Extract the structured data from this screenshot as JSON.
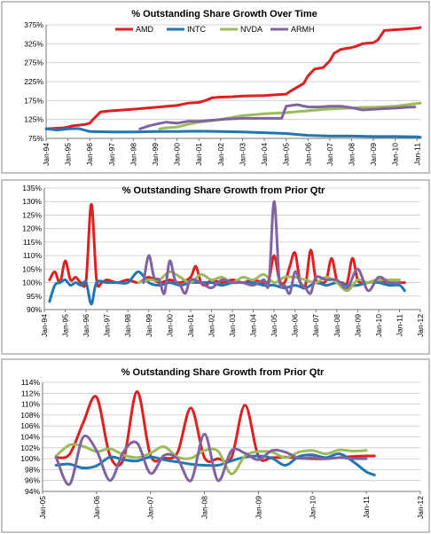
{
  "colors": {
    "AMD": "#e02020",
    "INTC": "#1f77b4",
    "NVDA": "#9cbb59",
    "ARMH": "#8064a2"
  },
  "chart_data": [
    {
      "type": "line",
      "title": "% Outstanding Share Growth Over Time",
      "legend": "top",
      "grid": true,
      "ylim": [
        75,
        375
      ],
      "yticks": [
        75,
        125,
        175,
        225,
        275,
        325,
        375
      ],
      "yticklabels": [
        "75%",
        "125%",
        "175%",
        "225%",
        "275%",
        "325%",
        "375%"
      ],
      "xlim": [
        1994,
        2011.15
      ],
      "xticks": [
        1994,
        1995,
        1996,
        1997,
        1998,
        1999,
        2000,
        2001,
        2002,
        2003,
        2004,
        2005,
        2006,
        2007,
        2008,
        2009,
        2010,
        2011
      ],
      "xticklabels": [
        "Jan-94",
        "Jan-95",
        "Jan-96",
        "Jan-97",
        "Jan-98",
        "Jan-99",
        "Jan-00",
        "Jan-01",
        "Jan-02",
        "Jan-03",
        "Jan-04",
        "Jan-05",
        "Jan-06",
        "Jan-07",
        "Jan-08",
        "Jan-09",
        "Jan-10",
        "Jan-11"
      ],
      "series": [
        {
          "name": "AMD",
          "x": [
            1994,
            1994.5,
            1994.8,
            1995,
            1995.2,
            1995.8,
            1996,
            1996.2,
            1996.5,
            1997,
            1998,
            1999,
            2000,
            2000.5,
            2001,
            2001.3,
            2001.6,
            2002,
            2002.5,
            2003,
            2004,
            2004.5,
            2005,
            2005.2,
            2005.5,
            2005.8,
            2006,
            2006.3,
            2006.7,
            2007,
            2007.2,
            2007.5,
            2008,
            2008.2,
            2008.5,
            2009,
            2009.2,
            2009.5,
            2010,
            2010.5,
            2011,
            2011.15
          ],
          "values": [
            100,
            102,
            103,
            105,
            108,
            112,
            115,
            128,
            145,
            148,
            152,
            157,
            162,
            168,
            170,
            175,
            182,
            184,
            185,
            187,
            188,
            190,
            192,
            200,
            210,
            220,
            240,
            258,
            262,
            280,
            300,
            310,
            315,
            318,
            325,
            328,
            335,
            360,
            362,
            364,
            366,
            368
          ]
        },
        {
          "name": "INTC",
          "x": [
            1994,
            1994.5,
            1995,
            1995.5,
            1996,
            1997,
            1998,
            1999,
            2000,
            2001,
            2002,
            2003,
            2004,
            2005,
            2006,
            2007,
            2008,
            2009,
            2010,
            2011,
            2011.15
          ],
          "values": [
            100,
            97,
            100,
            101,
            93,
            92,
            92,
            93,
            93,
            94,
            93,
            92,
            90,
            88,
            83,
            81,
            81,
            80,
            80,
            79,
            78
          ]
        },
        {
          "name": "NVDA",
          "x": [
            1999.2,
            1999.5,
            2000,
            2000.5,
            2001,
            2002,
            2003,
            2004,
            2005,
            2006,
            2007,
            2008,
            2008.5,
            2009,
            2010,
            2011.15
          ],
          "values": [
            100,
            103,
            105,
            112,
            118,
            125,
            135,
            140,
            143,
            148,
            153,
            155,
            157,
            157,
            160,
            168
          ]
        },
        {
          "name": "ARMH",
          "x": [
            1998.3,
            1998.7,
            1999,
            1999.5,
            2000,
            2000.5,
            2001,
            2002,
            2003,
            2004,
            2004.8,
            2005,
            2005.5,
            2006,
            2006.5,
            2007,
            2007.5,
            2008,
            2008.5,
            2009,
            2010,
            2010.5,
            2010.9
          ],
          "values": [
            100,
            108,
            112,
            118,
            115,
            120,
            120,
            125,
            128,
            128,
            128,
            160,
            164,
            158,
            158,
            160,
            160,
            156,
            150,
            152,
            155,
            157,
            158
          ]
        }
      ]
    },
    {
      "type": "line",
      "title": "% Outstanding Share Growth from Prior Qtr",
      "grid": true,
      "ylim": [
        90,
        135
      ],
      "yticks": [
        90,
        95,
        100,
        105,
        110,
        115,
        120,
        125,
        130,
        135
      ],
      "yticklabels": [
        "90%",
        "95%",
        "100%",
        "105%",
        "110%",
        "115%",
        "120%",
        "125%",
        "130%",
        "135%"
      ],
      "xlim": [
        1994,
        2012
      ],
      "xticks": [
        1994,
        1995,
        1996,
        1997,
        1998,
        1999,
        2000,
        2001,
        2002,
        2003,
        2004,
        2005,
        2006,
        2007,
        2008,
        2009,
        2010,
        2011,
        2012
      ],
      "xticklabels": [
        "Jan-94",
        "Jan-95",
        "Jan-96",
        "Jan-97",
        "Jan-98",
        "Jan-99",
        "Jan-00",
        "Jan-01",
        "Jan-02",
        "Jan-03",
        "Jan-04",
        "Jan-05",
        "Jan-06",
        "Jan-07",
        "Jan-08",
        "Jan-09",
        "Jan-10",
        "Jan-11",
        "Jan-12"
      ],
      "series": [
        {
          "name": "AMD",
          "x": [
            1994.25,
            1994.5,
            1994.75,
            1995,
            1995.25,
            1995.5,
            1995.75,
            1996,
            1996.25,
            1996.5,
            1996.75,
            1997,
            1997.5,
            1998,
            1998.5,
            1999,
            1999.5,
            2000,
            2000.5,
            2001,
            2001.25,
            2001.5,
            2001.75,
            2002,
            2002.5,
            2003,
            2003.5,
            2004,
            2004.5,
            2004.75,
            2005,
            2005.25,
            2005.5,
            2005.75,
            2006,
            2006.25,
            2006.5,
            2006.75,
            2007,
            2007.25,
            2007.5,
            2007.75,
            2008,
            2008.25,
            2008.5,
            2008.75,
            2009,
            2009.25,
            2009.5,
            2010,
            2010.5,
            2011,
            2011.25
          ],
          "values": [
            101,
            104,
            100,
            108,
            101,
            102,
            100,
            101,
            129,
            101,
            100,
            101,
            100,
            101,
            100,
            102,
            100,
            101,
            100,
            102,
            106,
            100,
            99,
            101,
            100,
            101,
            100,
            101,
            100,
            101,
            110,
            101,
            100,
            106,
            111,
            100,
            99,
            112,
            101,
            100,
            101,
            109,
            101,
            100,
            100,
            109,
            101,
            100,
            100,
            101,
            100,
            100,
            100
          ]
        },
        {
          "name": "INTC",
          "x": [
            1994.25,
            1994.5,
            1994.75,
            1995,
            1995.25,
            1995.5,
            1995.75,
            1996,
            1996.25,
            1996.5,
            1997,
            1997.5,
            1998,
            1998.5,
            1999,
            1999.5,
            2000,
            2000.5,
            2001,
            2001.5,
            2002,
            2002.5,
            2003,
            2003.5,
            2004,
            2004.5,
            2005,
            2005.5,
            2006,
            2006.5,
            2007,
            2007.5,
            2008,
            2008.5,
            2009,
            2009.5,
            2010,
            2010.5,
            2011,
            2011.25
          ],
          "values": [
            93,
            99,
            100,
            101,
            99,
            100,
            99,
            100,
            92,
            100,
            100,
            100,
            100,
            104,
            100,
            99,
            100,
            99,
            100,
            100,
            100,
            99,
            100,
            100,
            100,
            99,
            99,
            98,
            99,
            98,
            100,
            99,
            100,
            99,
            99,
            100,
            100,
            99,
            99,
            97
          ]
        },
        {
          "name": "NVDA",
          "x": [
            1998.5,
            1999,
            1999.5,
            2000,
            2000.5,
            2001,
            2001.5,
            2002,
            2002.5,
            2003,
            2003.5,
            2004,
            2004.5,
            2005,
            2005.5,
            2006,
            2006.5,
            2007,
            2007.5,
            2008,
            2008.5,
            2009,
            2009.5,
            2010,
            2010.5,
            2011
          ],
          "values": [
            100,
            101,
            101,
            104,
            102,
            100,
            103,
            101,
            102,
            100,
            102,
            101,
            103,
            100,
            102,
            102,
            101,
            100,
            102,
            100,
            97,
            101,
            100,
            101,
            101,
            101
          ]
        },
        {
          "name": "ARMH",
          "x": [
            1998.75,
            1999,
            1999.25,
            1999.5,
            1999.75,
            2000,
            2000.25,
            2000.5,
            2000.75,
            2001,
            2001.5,
            2002,
            2002.5,
            2003,
            2003.5,
            2004,
            2004.5,
            2004.75,
            2005,
            2005.25,
            2005.5,
            2005.75,
            2006,
            2006.25,
            2006.5,
            2006.75,
            2007,
            2007.5,
            2008,
            2008.5,
            2009,
            2009.5,
            2010,
            2010.5,
            2011
          ],
          "values": [
            100,
            110,
            102,
            101,
            96,
            108,
            101,
            99,
            96,
            101,
            100,
            98,
            101,
            100,
            100,
            99,
            101,
            100,
            130,
            101,
            99,
            96,
            104,
            100,
            98,
            96,
            102,
            101,
            101,
            98,
            105,
            97,
            102,
            100,
            100
          ]
        }
      ]
    },
    {
      "type": "line",
      "title": "% Outstanding Share  Growth from Prior Qtr",
      "grid": true,
      "ylim": [
        94,
        114
      ],
      "yticks": [
        94,
        96,
        98,
        100,
        102,
        104,
        106,
        108,
        110,
        112,
        114
      ],
      "yticklabels": [
        "94%",
        "96%",
        "98%",
        "100%",
        "102%",
        "104%",
        "106%",
        "108%",
        "110%",
        "112%",
        "114%"
      ],
      "xlim": [
        2005,
        2012
      ],
      "xticks": [
        2005,
        2006,
        2007,
        2008,
        2009,
        2010,
        2011,
        2012
      ],
      "xticklabels": [
        "Jan-05",
        "Jan-06",
        "Jan-07",
        "Jan-08",
        "Jan-09",
        "Jan-10",
        "Jan-11",
        "Jan-12"
      ],
      "series": [
        {
          "name": "AMD",
          "x": [
            2005.25,
            2005.5,
            2005.75,
            2006,
            2006.25,
            2006.5,
            2006.75,
            2007,
            2007.25,
            2007.5,
            2007.75,
            2008,
            2008.25,
            2008.5,
            2008.75,
            2009,
            2009.25,
            2009.5,
            2009.75,
            2010,
            2010.25,
            2010.5,
            2010.75,
            2011,
            2011.15
          ],
          "values": [
            100.2,
            100.8,
            106.5,
            111.3,
            100.5,
            99.9,
            112.3,
            100.6,
            100.1,
            101.1,
            109.3,
            100.2,
            100.0,
            100.2,
            109.8,
            100.4,
            100.2,
            100.3,
            100.1,
            100.0,
            100.0,
            100.2,
            100.4,
            100.5,
            100.5
          ]
        },
        {
          "name": "INTC",
          "x": [
            2005.25,
            2005.5,
            2005.75,
            2006,
            2006.25,
            2006.5,
            2006.75,
            2007,
            2007.25,
            2007.5,
            2007.75,
            2008,
            2008.25,
            2008.5,
            2008.75,
            2009,
            2009.25,
            2009.5,
            2009.75,
            2010,
            2010.25,
            2010.5,
            2010.75,
            2011,
            2011.15
          ],
          "values": [
            98.8,
            99.0,
            98.3,
            98.7,
            100.3,
            99.8,
            99.6,
            100.3,
            99.8,
            99.4,
            99.0,
            98.8,
            98.8,
            99.6,
            100.3,
            100.5,
            100.1,
            98.8,
            100.4,
            100.7,
            100.2,
            100.9,
            99.5,
            97.6,
            97.0
          ]
        },
        {
          "name": "NVDA",
          "x": [
            2005.25,
            2005.5,
            2005.75,
            2006,
            2006.25,
            2006.5,
            2006.75,
            2007,
            2007.25,
            2007.5,
            2007.75,
            2008,
            2008.25,
            2008.5,
            2008.75,
            2009,
            2009.25,
            2009.5,
            2009.75,
            2010,
            2010.25,
            2010.5,
            2010.75,
            2011
          ],
          "values": [
            100.5,
            102.5,
            102.3,
            101.3,
            101.8,
            100.7,
            100.2,
            101.0,
            102.2,
            100.3,
            100.1,
            101.5,
            101.4,
            97.2,
            100.5,
            101.3,
            101.2,
            100.2,
            101.2,
            101.5,
            100.9,
            101.6,
            101.4,
            101.5
          ]
        },
        {
          "name": "ARMH",
          "x": [
            2005.25,
            2005.5,
            2005.75,
            2006,
            2006.25,
            2006.5,
            2006.75,
            2007,
            2007.25,
            2007.5,
            2007.75,
            2008,
            2008.25,
            2008.5,
            2008.75,
            2009,
            2009.25,
            2009.5,
            2009.75,
            2010,
            2010.25,
            2010.5,
            2010.75,
            2011
          ],
          "values": [
            100.3,
            95.3,
            103.9,
            101.5,
            96.0,
            101.3,
            102.9,
            97.3,
            100.6,
            100.0,
            96.0,
            104.5,
            96.0,
            101.5,
            101.0,
            99.8,
            101.5,
            101.2,
            100.1,
            100.2,
            100.0,
            100.2,
            100.0,
            100.0
          ]
        }
      ]
    }
  ]
}
